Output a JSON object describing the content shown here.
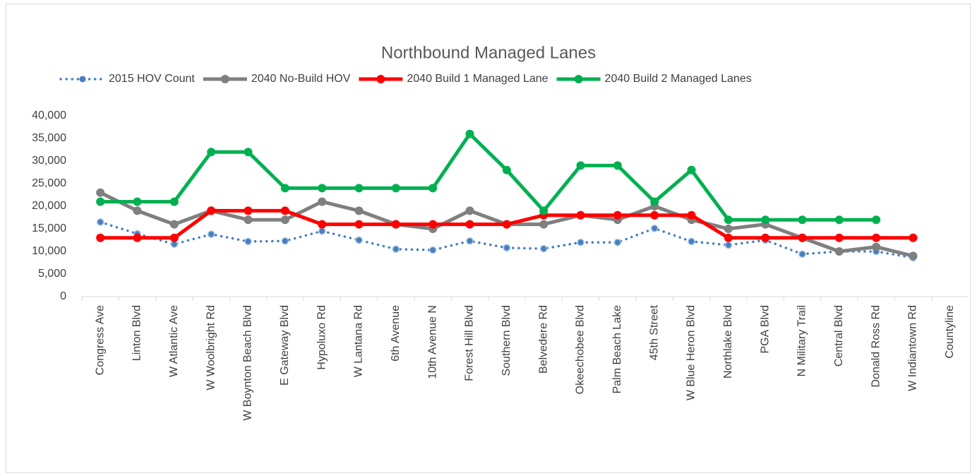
{
  "chart_data": {
    "type": "line",
    "title": "Northbound Managed Lanes",
    "categories": [
      "Congress Ave",
      "Linton Blvd",
      "W Atlantic Ave",
      "W Woolbright Rd",
      "W Boynton Beach Blvd",
      "E Gateway Blvd",
      "Hypoluxo Rd",
      "W Lantana Rd",
      "6th Avenue",
      "10th Avenue N",
      "Forest Hill Blvd",
      "Southern Blvd",
      "Belvedere Rd",
      "Okeechobee Blvd",
      "Palm Beach Lake",
      "45th Street",
      "W Blue Heron Blvd",
      "Northlake Blvd",
      "PGA Blvd",
      "N Military Trail",
      "Central Blvd",
      "Donald Ross Rd",
      "W Indiantown Rd",
      "Countyline"
    ],
    "series": [
      {
        "name": "2015 HOV Count",
        "color": "#4a7ebb",
        "dashed": true,
        "values": [
          16500,
          13900,
          11600,
          13800,
          12200,
          12300,
          14500,
          12500,
          10500,
          10300,
          12300,
          10800,
          10600,
          12000,
          12000,
          15100,
          12200,
          11400,
          12500,
          9400,
          10000,
          10000,
          8600,
          null
        ]
      },
      {
        "name": "2040 No-Build HOV",
        "color": "#7f7f7f",
        "values": [
          23000,
          19000,
          16000,
          19000,
          17000,
          17000,
          21000,
          19000,
          16000,
          15000,
          19000,
          16000,
          16000,
          18000,
          17000,
          20000,
          17000,
          15000,
          16000,
          13000,
          10000,
          11000,
          9000,
          null
        ]
      },
      {
        "name": "2040 Build 1 Managed Lane",
        "color": "#ff0000",
        "values": [
          13000,
          13000,
          13000,
          19000,
          19000,
          19000,
          16000,
          16000,
          16000,
          16000,
          16000,
          16000,
          18000,
          18000,
          18000,
          18000,
          18000,
          13000,
          13000,
          13000,
          13000,
          13000,
          13000,
          null
        ]
      },
      {
        "name": "2040 Build 2 Managed Lanes",
        "color": "#00b050",
        "values": [
          21000,
          21000,
          21000,
          32000,
          32000,
          24000,
          24000,
          24000,
          24000,
          24000,
          36000,
          28000,
          19000,
          29000,
          29000,
          21000,
          28000,
          17000,
          17000,
          17000,
          17000,
          17000,
          null,
          null
        ]
      }
    ],
    "ylim": [
      0,
      40000
    ],
    "yticks": [
      0,
      {
        "value": 5000,
        "label": "5,000"
      },
      {
        "value": 10000,
        "label": "10,000"
      },
      {
        "value": 15000,
        "label": "15,000"
      },
      {
        "value": 20000,
        "label": "20,000"
      },
      {
        "value": 25000,
        "label": "25,000"
      },
      {
        "value": 30000,
        "label": "30,000"
      },
      {
        "value": 35000,
        "label": "35,000"
      },
      {
        "value": 40000,
        "label": "40,000"
      }
    ],
    "grid": false,
    "legend": "top"
  }
}
